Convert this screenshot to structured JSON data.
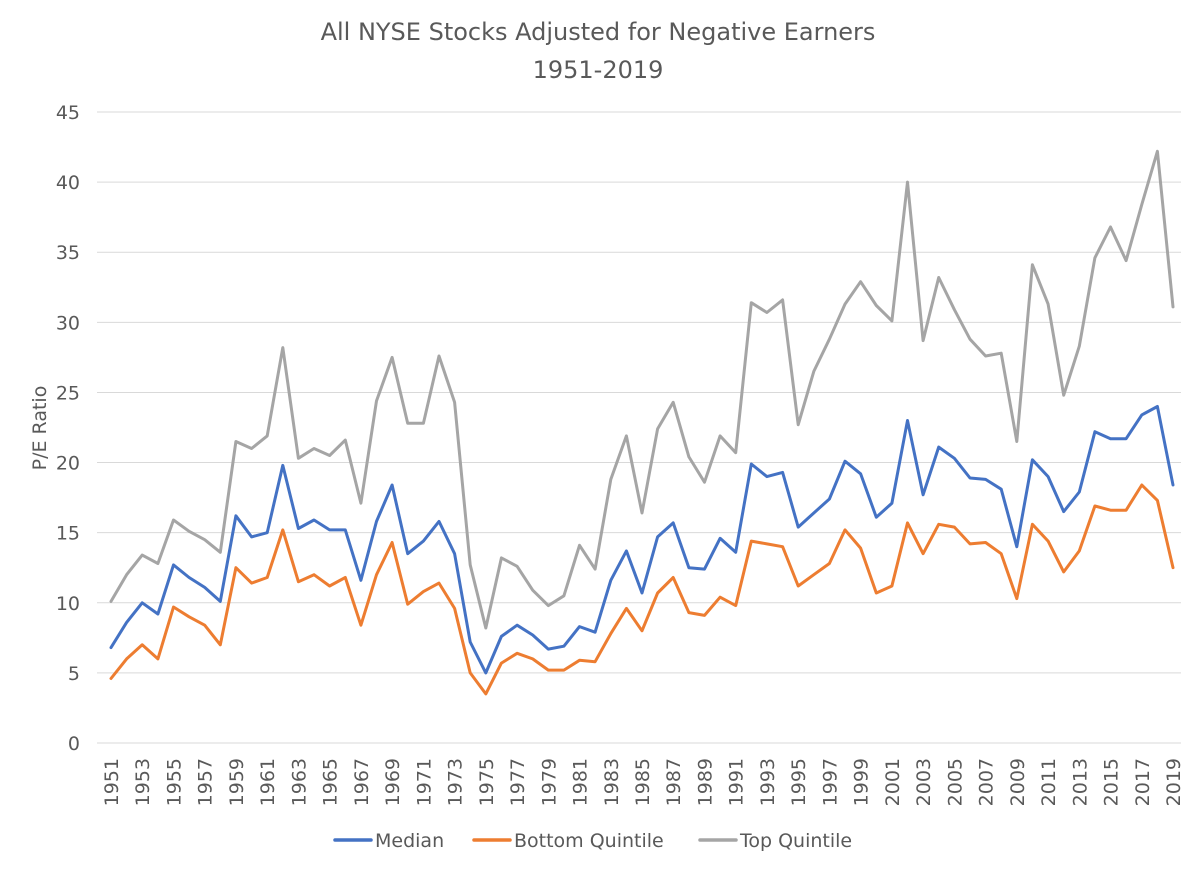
{
  "chart_data": {
    "type": "line",
    "title": "All NYSE Stocks Adjusted for Negative Earners",
    "subtitle": "1951-2019",
    "xlabel": "",
    "ylabel": "P/E Ratio",
    "ylim": [
      0,
      45
    ],
    "yticks": [
      0,
      5,
      10,
      15,
      20,
      25,
      30,
      35,
      40,
      45
    ],
    "grid": true,
    "legend": "bottom",
    "x": [
      1951,
      1952,
      1953,
      1954,
      1955,
      1956,
      1957,
      1958,
      1959,
      1960,
      1961,
      1962,
      1963,
      1964,
      1965,
      1966,
      1967,
      1968,
      1969,
      1970,
      1971,
      1972,
      1973,
      1974,
      1975,
      1976,
      1977,
      1978,
      1979,
      1980,
      1981,
      1982,
      1983,
      1984,
      1985,
      1986,
      1987,
      1988,
      1989,
      1990,
      1991,
      1992,
      1993,
      1994,
      1995,
      1996,
      1997,
      1998,
      1999,
      2000,
      2001,
      2002,
      2003,
      2004,
      2005,
      2006,
      2007,
      2008,
      2009,
      2010,
      2011,
      2012,
      2013,
      2014,
      2015,
      2016,
      2017,
      2018,
      2019
    ],
    "x_tick_labels": [
      "1951",
      "1953",
      "1955",
      "1957",
      "1959",
      "1961",
      "1963",
      "1965",
      "1967",
      "1969",
      "1971",
      "1973",
      "1975",
      "1977",
      "1979",
      "1981",
      "1983",
      "1985",
      "1987",
      "1989",
      "1991",
      "1993",
      "1995",
      "1997",
      "1999",
      "2001",
      "2003",
      "2005",
      "2007",
      "2009",
      "2011",
      "2013",
      "2015",
      "2017",
      "2019"
    ],
    "series": [
      {
        "name": "Median",
        "color": "#4472c4",
        "values": [
          6.8,
          8.6,
          10.0,
          9.2,
          12.7,
          11.8,
          11.1,
          10.1,
          16.2,
          14.7,
          15.0,
          19.8,
          15.3,
          15.9,
          15.2,
          15.2,
          11.6,
          15.8,
          18.4,
          13.5,
          14.4,
          15.8,
          13.5,
          7.2,
          5.0,
          7.6,
          8.4,
          7.7,
          6.7,
          6.9,
          8.3,
          7.9,
          11.6,
          13.7,
          10.7,
          14.7,
          15.7,
          12.5,
          12.4,
          14.6,
          13.6,
          19.9,
          19.0,
          19.3,
          15.4,
          16.4,
          17.4,
          20.1,
          19.2,
          16.1,
          17.1,
          23.0,
          17.7,
          21.1,
          20.3,
          18.9,
          18.8,
          18.1,
          14.0,
          20.2,
          19.0,
          16.5,
          17.9,
          22.2,
          21.7,
          21.7,
          23.4,
          24.0,
          18.4
        ]
      },
      {
        "name": "Bottom Quintile",
        "color": "#ed7d31",
        "values": [
          4.6,
          6.0,
          7.0,
          6.0,
          9.7,
          9.0,
          8.4,
          7.0,
          12.5,
          11.4,
          11.8,
          15.2,
          11.5,
          12.0,
          11.2,
          11.8,
          8.4,
          12.0,
          14.3,
          9.9,
          10.8,
          11.4,
          9.6,
          5.0,
          3.5,
          5.7,
          6.4,
          6.0,
          5.2,
          5.2,
          5.9,
          5.8,
          7.8,
          9.6,
          8.0,
          10.7,
          11.8,
          9.3,
          9.1,
          10.4,
          9.8,
          14.4,
          14.2,
          14.0,
          11.2,
          12.0,
          12.8,
          15.2,
          13.9,
          10.7,
          11.2,
          15.7,
          13.5,
          15.6,
          15.4,
          14.2,
          14.3,
          13.5,
          10.3,
          15.6,
          14.4,
          12.2,
          13.7,
          16.9,
          16.6,
          16.6,
          18.4,
          17.3,
          12.5
        ]
      },
      {
        "name": "Top Quintile",
        "color": "#a5a5a5",
        "values": [
          10.1,
          12.0,
          13.4,
          12.8,
          15.9,
          15.1,
          14.5,
          13.6,
          21.5,
          21.0,
          21.9,
          28.2,
          20.3,
          21.0,
          20.5,
          21.6,
          17.1,
          24.4,
          27.5,
          22.8,
          22.8,
          27.6,
          24.3,
          12.7,
          8.2,
          13.2,
          12.6,
          10.9,
          9.8,
          10.5,
          14.1,
          12.4,
          18.8,
          21.9,
          16.4,
          22.4,
          24.3,
          20.4,
          18.6,
          21.9,
          20.7,
          31.4,
          30.7,
          31.6,
          22.7,
          26.5,
          28.8,
          31.3,
          32.9,
          31.2,
          30.1,
          40.0,
          28.7,
          33.2,
          30.9,
          28.8,
          27.6,
          27.8,
          21.5,
          34.1,
          31.3,
          24.8,
          28.3,
          34.6,
          36.8,
          34.4,
          38.4,
          42.2,
          31.1
        ]
      }
    ]
  }
}
